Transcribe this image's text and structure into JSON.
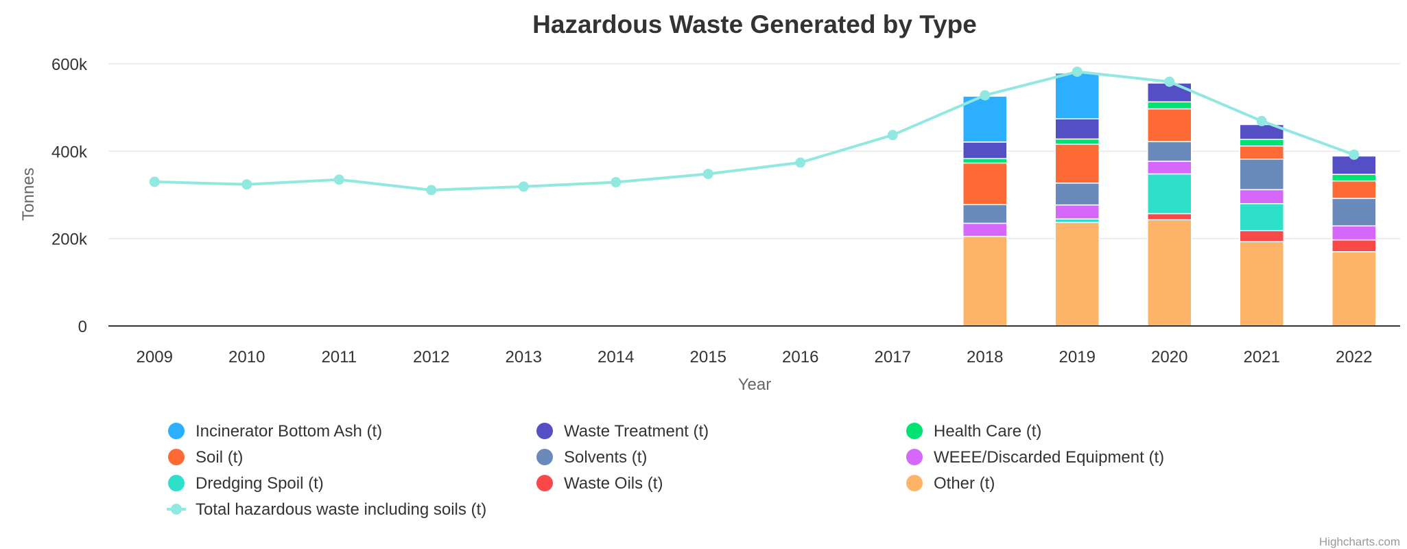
{
  "chart_data": {
    "type": "bar",
    "title": "Hazardous Waste Generated by Type",
    "xlabel": "Year",
    "ylabel": "Tonnes",
    "ylim": [
      0,
      600000
    ],
    "y_ticks": [
      0,
      200000,
      400000,
      600000
    ],
    "y_tick_labels": [
      "0",
      "200k",
      "400k",
      "600k"
    ],
    "categories": [
      "2009",
      "2010",
      "2011",
      "2012",
      "2013",
      "2014",
      "2015",
      "2016",
      "2017",
      "2018",
      "2019",
      "2020",
      "2021",
      "2022"
    ],
    "stacked": true,
    "grid": true,
    "legend_position": "bottom",
    "series": [
      {
        "name": "Other (t)",
        "color": "#fdb469",
        "values": [
          null,
          null,
          null,
          null,
          null,
          null,
          null,
          null,
          null,
          205000,
          237000,
          243000,
          193000,
          170000
        ]
      },
      {
        "name": "Waste Oils (t)",
        "color": "#f94848",
        "values": [
          null,
          null,
          null,
          null,
          null,
          null,
          null,
          null,
          null,
          0,
          0,
          14000,
          25000,
          27000
        ]
      },
      {
        "name": "Dredging Spoil (t)",
        "color": "#2ee0ca",
        "values": [
          null,
          null,
          null,
          null,
          null,
          null,
          null,
          null,
          null,
          0,
          8000,
          91000,
          62000,
          0
        ]
      },
      {
        "name": "WEEE/Discarded Equipment (t)",
        "color": "#d568fb",
        "values": [
          null,
          null,
          null,
          null,
          null,
          null,
          null,
          null,
          null,
          30000,
          32000,
          29000,
          32000,
          32000
        ]
      },
      {
        "name": "Solvents (t)",
        "color": "#6b8abc",
        "values": [
          null,
          null,
          null,
          null,
          null,
          null,
          null,
          null,
          null,
          43000,
          50000,
          45000,
          70000,
          63000
        ]
      },
      {
        "name": "Soil (t)",
        "color": "#fe6a35",
        "values": [
          null,
          null,
          null,
          null,
          null,
          null,
          null,
          null,
          null,
          95000,
          89000,
          75000,
          30000,
          40000
        ]
      },
      {
        "name": "Health Care (t)",
        "color": "#00e272",
        "values": [
          null,
          null,
          null,
          null,
          null,
          null,
          null,
          null,
          null,
          10000,
          12000,
          16000,
          15000,
          15000
        ]
      },
      {
        "name": "Waste Treatment (t)",
        "color": "#544fc5",
        "values": [
          null,
          null,
          null,
          null,
          null,
          null,
          null,
          null,
          null,
          38000,
          46000,
          43000,
          34000,
          42000
        ]
      },
      {
        "name": "Incinerator Bottom Ash (t)",
        "color": "#2caffe",
        "values": [
          null,
          null,
          null,
          null,
          null,
          null,
          null,
          null,
          null,
          105000,
          105000,
          0,
          0,
          0
        ]
      }
    ],
    "line_series": {
      "name": "Total hazardous waste including soils (t)",
      "color": "#91e8e1",
      "values": [
        330000,
        324000,
        335000,
        311000,
        319000,
        329000,
        348000,
        374000,
        437000,
        528000,
        582000,
        559000,
        469000,
        392000
      ]
    },
    "legend_order": [
      "Incinerator Bottom Ash (t)",
      "Waste Treatment (t)",
      "Health Care (t)",
      "Soil (t)",
      "Solvents (t)",
      "WEEE/Discarded Equipment (t)",
      "Dredging Spoil (t)",
      "Waste Oils (t)",
      "Other (t)",
      "Total hazardous waste including soils (t)"
    ]
  },
  "credits": "Highcharts.com"
}
